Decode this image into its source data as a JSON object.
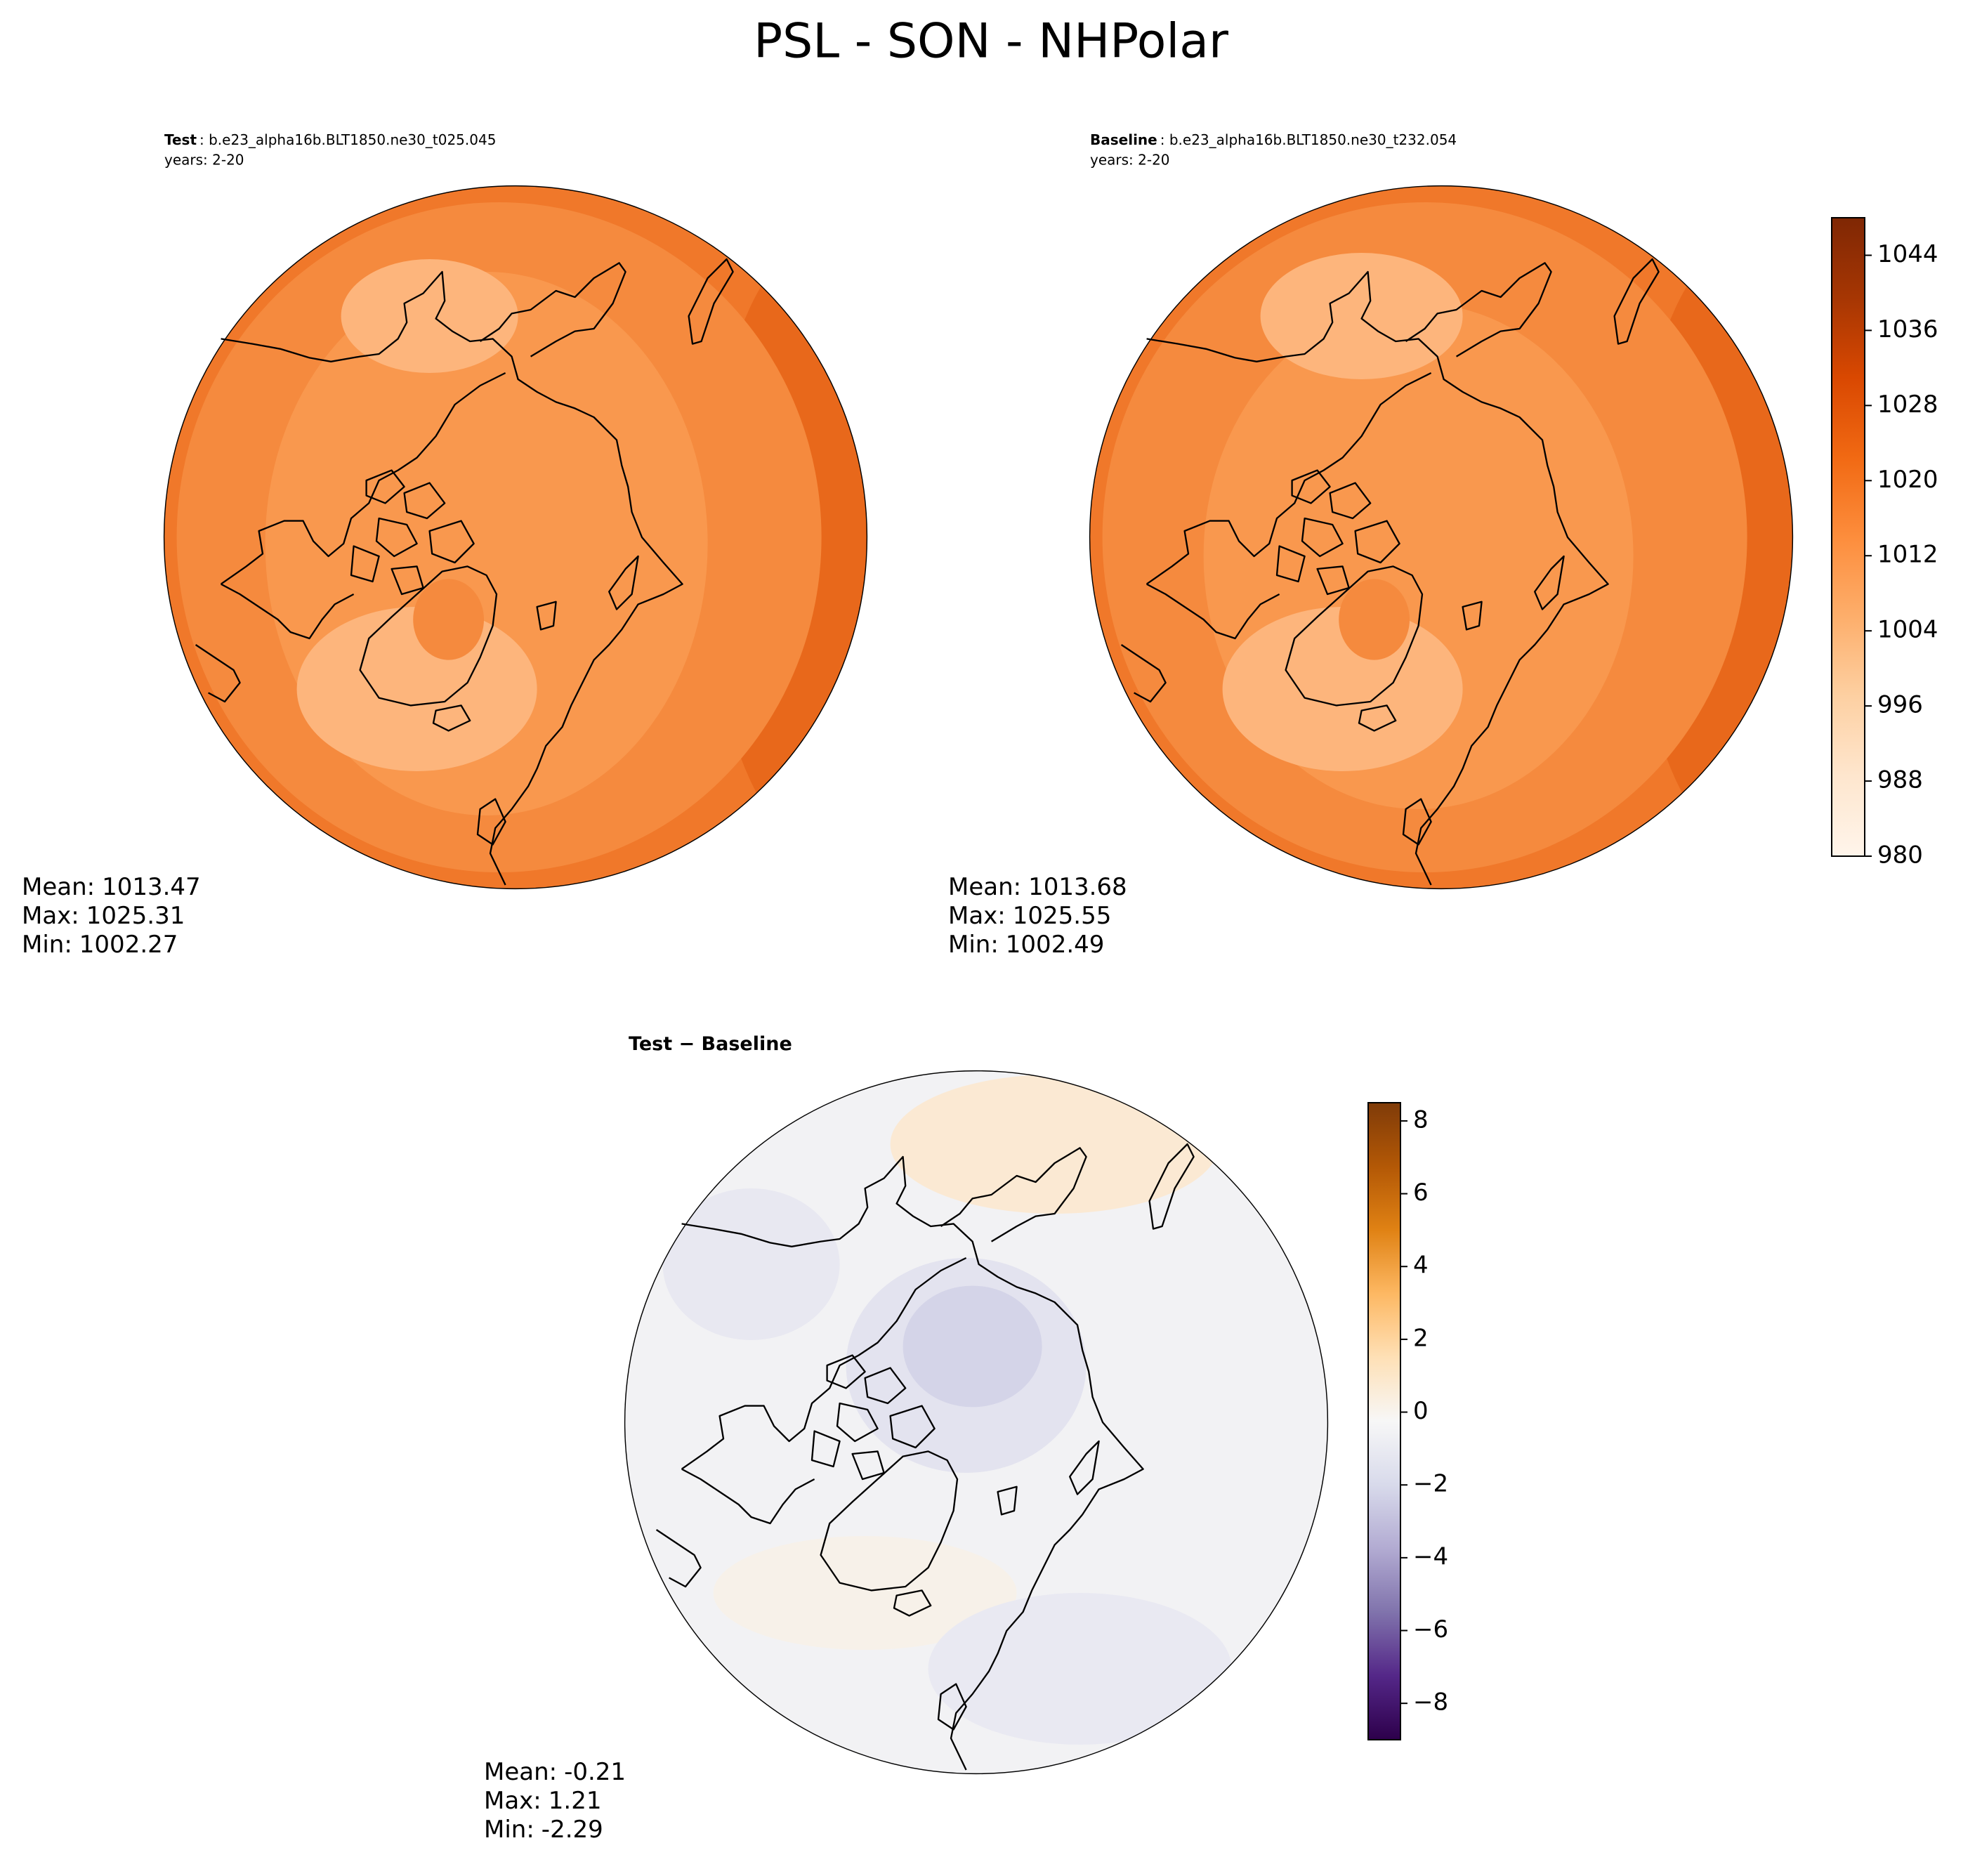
{
  "title": "PSL - SON - NHPolar",
  "chart_data": [
    {
      "type": "map",
      "label": "Test",
      "case": ": b.e23_alpha16b.BLT1850.ne30_t025.045",
      "subtitle": "years: 2-20",
      "stat_labels": [
        "Mean:",
        "Max:",
        "Min:"
      ],
      "stats": [
        1013.47,
        1025.31,
        1002.27
      ]
    },
    {
      "type": "map",
      "label": "Baseline",
      "case": ": b.e23_alpha16b.BLT1850.ne30_t232.054",
      "subtitle": "years: 2-20",
      "stat_labels": [
        "Mean:",
        "Max:",
        "Min:"
      ],
      "stats": [
        1013.68,
        1025.55,
        1002.49
      ]
    },
    {
      "type": "map",
      "label": "Test − Baseline",
      "stat_labels": [
        "Mean:",
        "Max:",
        "Min:"
      ],
      "stats": [
        -0.21,
        1.21,
        -2.29
      ]
    },
    {
      "type": "colorbar",
      "ylim": [
        980,
        1048
      ],
      "yticks": [
        980,
        988,
        996,
        1004,
        1012,
        1020,
        1028,
        1036,
        1044
      ],
      "colormap": [
        "#fff5eb",
        "#fee6ce",
        "#fdd0a2",
        "#fdae6b",
        "#fd8d3c",
        "#f16913",
        "#d94801",
        "#a63603",
        "#7f2704"
      ]
    },
    {
      "type": "colorbar",
      "ylim": [
        -9,
        8.5
      ],
      "yticks": [
        {
          "value": -8,
          "label": "−8"
        },
        {
          "value": -6,
          "label": "−6"
        },
        {
          "value": -4,
          "label": "−4"
        },
        {
          "value": -2,
          "label": "−2"
        },
        0,
        2,
        4,
        6,
        8
      ],
      "colormap": [
        "#2d004b",
        "#542788",
        "#8073ac",
        "#b2abd2",
        "#d8daeb",
        "#f7f7f7",
        "#fee0b6",
        "#fdb863",
        "#e08214",
        "#b35806",
        "#7f3b08"
      ]
    }
  ]
}
